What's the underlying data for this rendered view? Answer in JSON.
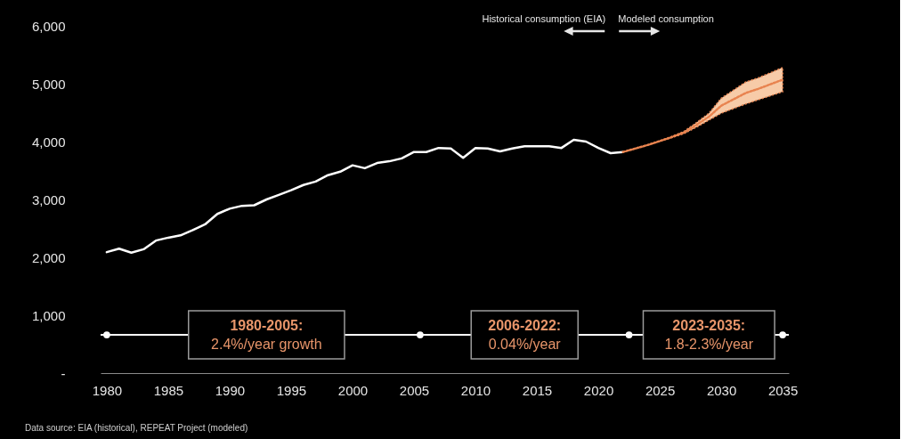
{
  "chart_data": {
    "type": "line",
    "xlim": [
      1979.5,
      2035.5
    ],
    "xticks": [
      1980,
      1985,
      1990,
      1995,
      2000,
      2005,
      2010,
      2015,
      2020,
      2025,
      2030,
      2035
    ],
    "ylim": [
      0,
      6000
    ],
    "yticks": [
      {
        "value": 0,
        "label": "-"
      },
      {
        "value": 1000,
        "label": "1,000"
      },
      {
        "value": 2000,
        "label": "2,000"
      },
      {
        "value": 3000,
        "label": "3,000"
      },
      {
        "value": 4000,
        "label": "4,000"
      },
      {
        "value": 5000,
        "label": "5,000"
      },
      {
        "value": 6000,
        "label": "6,000"
      }
    ],
    "grid": false,
    "line_style": "solid",
    "series": [
      {
        "color": "#ffffff",
        "x": [
          1980,
          1981,
          1982,
          1983,
          1984,
          1985,
          1986,
          1987,
          1988,
          1989,
          1990,
          1991,
          1992,
          1993,
          1994,
          1995,
          1996,
          1997,
          1998,
          1999,
          2000,
          2001,
          2002,
          2003,
          2004,
          2005,
          2006,
          2007,
          2008,
          2009,
          2010,
          2011,
          2012,
          2013,
          2014,
          2015,
          2016,
          2017,
          2018,
          2019,
          2020,
          2021,
          2022
        ],
        "values": [
          2090,
          2150,
          2080,
          2140,
          2290,
          2340,
          2380,
          2470,
          2570,
          2750,
          2840,
          2890,
          2900,
          3000,
          3080,
          3160,
          3250,
          3310,
          3420,
          3480,
          3590,
          3540,
          3630,
          3660,
          3710,
          3820,
          3820,
          3890,
          3880,
          3720,
          3890,
          3880,
          3830,
          3880,
          3920,
          3920,
          3920,
          3890,
          4030,
          4000,
          3890,
          3800,
          3820
        ]
      },
      {
        "color": "#e8834f",
        "line_style": "dotted",
        "x": [
          2022,
          2023,
          2024,
          2025,
          2026,
          2027,
          2028,
          2029,
          2030,
          2031,
          2032,
          2033,
          2034,
          2035
        ],
        "values": [
          3820,
          3880,
          3940,
          4010,
          4080,
          4160,
          4290,
          4430,
          4620,
          4730,
          4840,
          4910,
          4990,
          5070
        ],
        "lower": [
          3820,
          3880,
          3940,
          4010,
          4070,
          4140,
          4250,
          4370,
          4490,
          4570,
          4650,
          4720,
          4790,
          4860
        ],
        "upper": [
          3820,
          3880,
          3940,
          4010,
          4090,
          4180,
          4330,
          4490,
          4750,
          4890,
          5030,
          5100,
          5190,
          5280
        ]
      },
      {
        "type": "scatter",
        "color": "#ffffff",
        "marker": "circle",
        "x": [
          1980,
          2005.5,
          2022.5,
          2035
        ],
        "values": [
          660,
          660,
          660,
          660
        ]
      }
    ],
    "ref_lines": [
      {
        "axis": "y",
        "value": 660,
        "color": "#ffffff"
      }
    ],
    "annotations": [
      {
        "text": "1980-2005:\n2.4%/year growth",
        "x": 1993,
        "y": 660
      },
      {
        "text": "2006-2022:\n0.04%/year",
        "x": 2014,
        "y": 660
      },
      {
        "text": "2023-2035:\n1.8-2.3%/year",
        "x": 2029,
        "y": 660
      },
      "Historical consumption (EIA)",
      "Modeled consumption",
      "Data source: EIA (historical), REPEAT Project (modeled)"
    ]
  }
}
